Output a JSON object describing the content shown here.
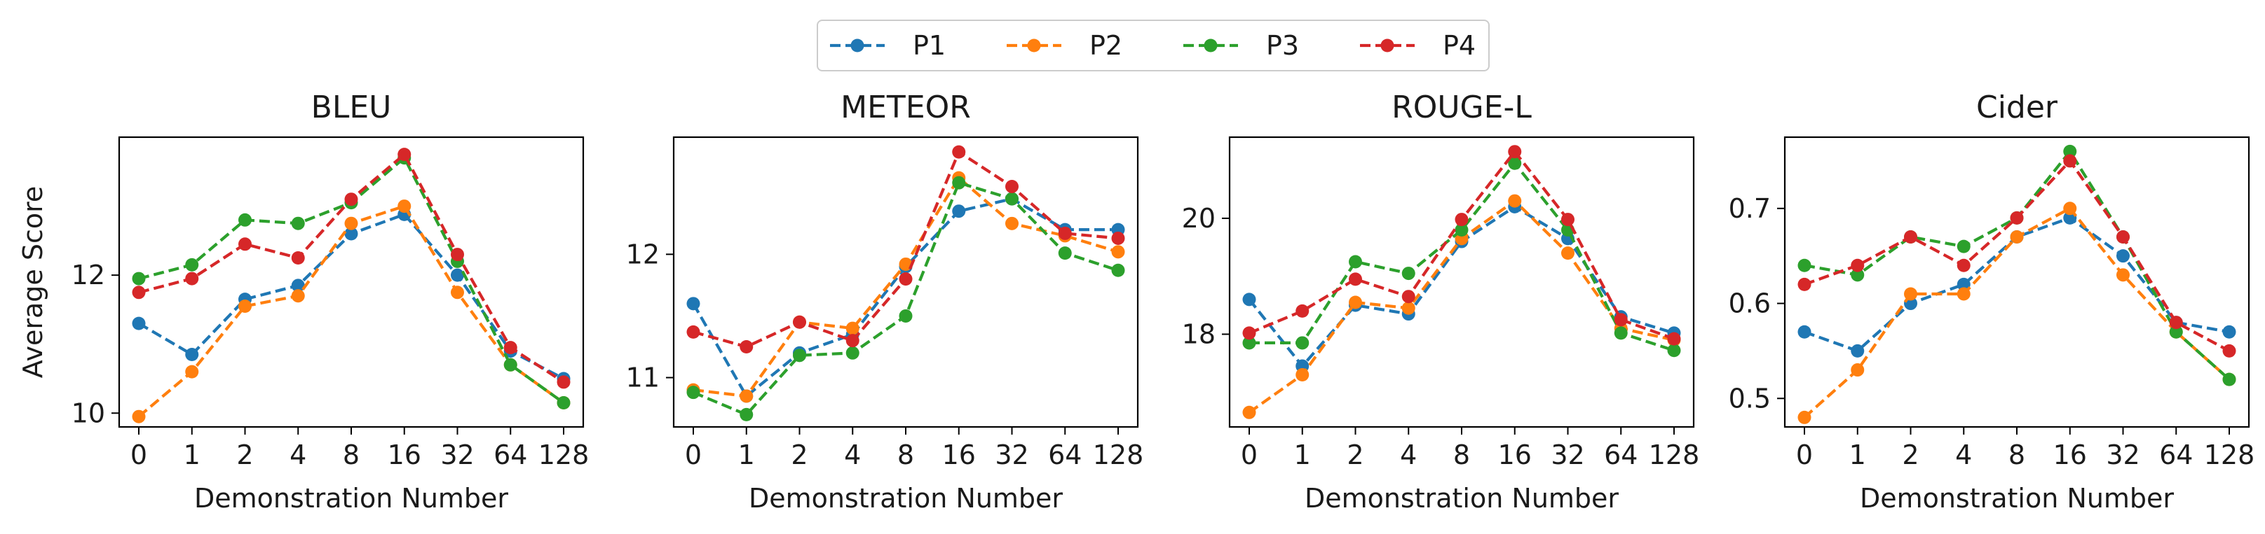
{
  "legend": {
    "placement": "top-center",
    "entries": [
      "P1",
      "P2",
      "P3",
      "P4"
    ]
  },
  "series_colors": [
    "#1f77b4",
    "#ff7f0e",
    "#2ca02c",
    "#d62728"
  ],
  "chart_data": [
    {
      "type": "line",
      "title": "BLEU",
      "xlabel": "Demonstration Number",
      "ylabel": "Average Score",
      "categories": [
        "0",
        "1",
        "2",
        "4",
        "8",
        "16",
        "32",
        "64",
        "128"
      ],
      "yticks": [
        10,
        12
      ],
      "ylim": [
        9.8,
        14.0
      ],
      "grid": false,
      "series": [
        {
          "name": "P1",
          "values": [
            11.3,
            10.85,
            11.65,
            11.85,
            12.6,
            12.88,
            12.0,
            10.9,
            10.5
          ]
        },
        {
          "name": "P2",
          "values": [
            9.95,
            10.6,
            11.55,
            11.7,
            12.75,
            13.0,
            11.75,
            10.7,
            10.15
          ]
        },
        {
          "name": "P3",
          "values": [
            11.95,
            12.15,
            12.8,
            12.75,
            13.05,
            13.7,
            12.2,
            10.7,
            10.15
          ]
        },
        {
          "name": "P4",
          "values": [
            11.75,
            11.95,
            12.45,
            12.25,
            13.1,
            13.75,
            12.3,
            10.95,
            10.45
          ]
        }
      ]
    },
    {
      "type": "line",
      "title": "METEOR",
      "xlabel": "Demonstration Number",
      "ylabel": "",
      "categories": [
        "0",
        "1",
        "2",
        "4",
        "8",
        "16",
        "32",
        "64",
        "128"
      ],
      "yticks": [
        11,
        12
      ],
      "ylim": [
        10.6,
        12.95
      ],
      "grid": false,
      "series": [
        {
          "name": "P1",
          "values": [
            11.6,
            10.85,
            11.2,
            11.35,
            11.9,
            12.35,
            12.45,
            12.2,
            12.2
          ]
        },
        {
          "name": "P2",
          "values": [
            10.9,
            10.85,
            11.45,
            11.4,
            11.92,
            12.62,
            12.25,
            12.15,
            12.02
          ]
        },
        {
          "name": "P3",
          "values": [
            10.88,
            10.7,
            11.18,
            11.2,
            11.5,
            12.58,
            12.45,
            12.01,
            11.87
          ]
        },
        {
          "name": "P4",
          "values": [
            11.37,
            11.25,
            11.45,
            11.3,
            11.8,
            12.83,
            12.55,
            12.17,
            12.13
          ]
        }
      ]
    },
    {
      "type": "line",
      "title": "ROUGE-L",
      "xlabel": "Demonstration Number",
      "ylabel": "",
      "categories": [
        "0",
        "1",
        "2",
        "4",
        "8",
        "16",
        "32",
        "64",
        "128"
      ],
      "yticks": [
        18,
        20
      ],
      "ylim": [
        16.4,
        21.4
      ],
      "grid": false,
      "series": [
        {
          "name": "P1",
          "values": [
            18.6,
            17.45,
            18.5,
            18.35,
            19.6,
            20.2,
            19.65,
            18.3,
            18.02
          ]
        },
        {
          "name": "P2",
          "values": [
            16.65,
            17.3,
            18.55,
            18.45,
            19.65,
            20.3,
            19.4,
            18.1,
            17.9
          ]
        },
        {
          "name": "P3",
          "values": [
            17.85,
            17.85,
            19.25,
            19.05,
            19.8,
            20.95,
            19.8,
            18.02,
            17.72
          ]
        },
        {
          "name": "P4",
          "values": [
            18.02,
            18.4,
            18.95,
            18.65,
            19.98,
            21.15,
            19.98,
            18.25,
            17.92
          ]
        }
      ]
    },
    {
      "type": "line",
      "title": "Cider",
      "xlabel": "Demonstration Number",
      "ylabel": "",
      "categories": [
        "0",
        "1",
        "2",
        "4",
        "8",
        "16",
        "32",
        "64",
        "128"
      ],
      "yticks": [
        0.5,
        0.6,
        0.7
      ],
      "ylim": [
        0.47,
        0.775
      ],
      "grid": false,
      "series": [
        {
          "name": "P1",
          "values": [
            0.57,
            0.55,
            0.6,
            0.62,
            0.67,
            0.69,
            0.65,
            0.58,
            0.57
          ]
        },
        {
          "name": "P2",
          "values": [
            0.48,
            0.53,
            0.61,
            0.61,
            0.67,
            0.7,
            0.63,
            0.57,
            0.52
          ]
        },
        {
          "name": "P3",
          "values": [
            0.64,
            0.63,
            0.67,
            0.66,
            0.69,
            0.76,
            0.67,
            0.57,
            0.52
          ]
        },
        {
          "name": "P4",
          "values": [
            0.62,
            0.64,
            0.67,
            0.64,
            0.69,
            0.75,
            0.67,
            0.58,
            0.55
          ]
        }
      ]
    }
  ]
}
